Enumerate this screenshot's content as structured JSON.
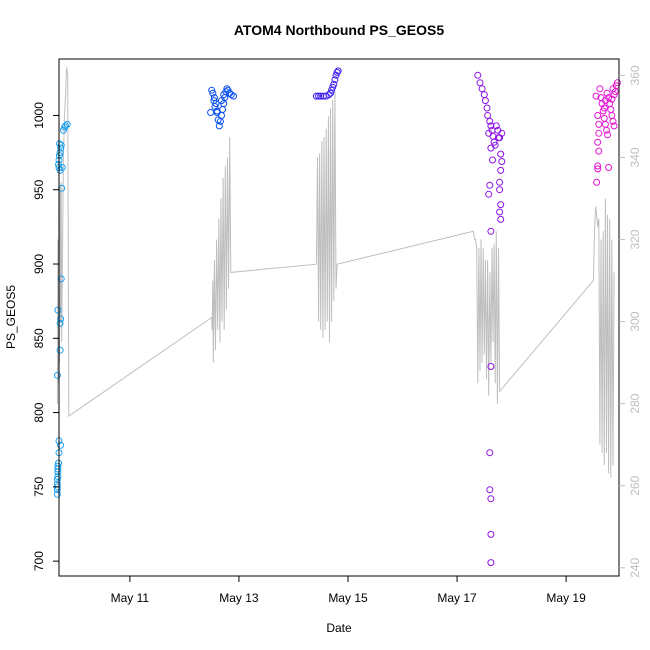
{
  "chart_data": {
    "type": "scatter",
    "title": "ATOM4 Northbound PS_GEOS5",
    "xlabel": "Date",
    "ylabel": "PS_GEOS5",
    "grid": false,
    "xlim": [
      9.7,
      19.97
    ],
    "ylim": [
      690,
      1038
    ],
    "x_ticks": [
      {
        "value": 11,
        "label": "May 11"
      },
      {
        "value": 13,
        "label": "May 13"
      },
      {
        "value": 15,
        "label": "May 15"
      },
      {
        "value": 17,
        "label": "May 17"
      },
      {
        "value": 19,
        "label": "May 19"
      }
    ],
    "y_ticks": [
      700,
      750,
      800,
      850,
      900,
      950,
      1000
    ],
    "y2_ticks": [
      240,
      260,
      280,
      300,
      320,
      340,
      360
    ],
    "y2lim": [
      238,
      364
    ],
    "y2_color": "#bebebe",
    "x_unit_note": "x values are day-of-month in May",
    "series": [
      {
        "color": "#1ea0f0",
        "marker": "open-circle",
        "points": [
          [
            9.67,
            745
          ],
          [
            9.67,
            748
          ],
          [
            9.67,
            750
          ],
          [
            9.67,
            752
          ],
          [
            9.67,
            755
          ],
          [
            9.68,
            757
          ],
          [
            9.68,
            760
          ],
          [
            9.68,
            762
          ],
          [
            9.68,
            764
          ],
          [
            9.69,
            766
          ],
          [
            9.7,
            773
          ],
          [
            9.7,
            781
          ],
          [
            9.73,
            778
          ],
          [
            9.67,
            825
          ],
          [
            9.68,
            869
          ],
          [
            9.72,
            860
          ],
          [
            9.73,
            863
          ],
          [
            9.72,
            842
          ],
          [
            9.74,
            890
          ],
          [
            9.75,
            951
          ],
          [
            9.72,
            963
          ],
          [
            9.7,
            965
          ],
          [
            9.69,
            967
          ],
          [
            9.7,
            970
          ],
          [
            9.71,
            973
          ],
          [
            9.72,
            975
          ],
          [
            9.73,
            978
          ],
          [
            9.74,
            980
          ],
          [
            9.76,
            965
          ],
          [
            9.78,
            990
          ],
          [
            9.8,
            992
          ],
          [
            9.82,
            993
          ],
          [
            9.85,
            994
          ],
          [
            9.71,
            981
          ]
        ]
      },
      {
        "color": "#0a50f0",
        "marker": "open-circle",
        "points": [
          [
            12.5,
            1017
          ],
          [
            12.52,
            1015
          ],
          [
            12.55,
            1012
          ],
          [
            12.58,
            1008
          ],
          [
            12.6,
            1003
          ],
          [
            12.62,
            997
          ],
          [
            12.64,
            993
          ],
          [
            12.6,
            1002
          ],
          [
            12.66,
            996
          ],
          [
            12.68,
            1000
          ],
          [
            12.7,
            1004
          ],
          [
            12.72,
            1008
          ],
          [
            12.74,
            1012
          ],
          [
            12.76,
            1016
          ],
          [
            12.78,
            1018
          ],
          [
            12.8,
            1017
          ],
          [
            12.83,
            1015
          ],
          [
            12.86,
            1014
          ],
          [
            12.9,
            1013
          ],
          [
            12.68,
            1010
          ],
          [
            12.72,
            1014
          ],
          [
            12.54,
            1010
          ],
          [
            12.56,
            1006
          ],
          [
            12.48,
            1002
          ]
        ]
      },
      {
        "color": "#3c1ef0",
        "marker": "open-circle",
        "points": [
          [
            14.42,
            1013
          ],
          [
            14.46,
            1013
          ],
          [
            14.5,
            1013
          ],
          [
            14.55,
            1013
          ],
          [
            14.6,
            1013
          ],
          [
            14.65,
            1014
          ],
          [
            14.68,
            1015
          ],
          [
            14.7,
            1017
          ],
          [
            14.72,
            1019
          ],
          [
            14.74,
            1021
          ],
          [
            14.76,
            1024
          ],
          [
            14.78,
            1027
          ],
          [
            14.8,
            1029
          ],
          [
            14.82,
            1030
          ]
        ]
      },
      {
        "color": "#8c14e6",
        "marker": "open-circle",
        "points": [
          [
            17.38,
            1027
          ],
          [
            17.42,
            1022
          ],
          [
            17.46,
            1018
          ],
          [
            17.5,
            1014
          ],
          [
            17.52,
            1010
          ],
          [
            17.55,
            1005
          ],
          [
            17.56,
            1000
          ],
          [
            17.6,
            996
          ],
          [
            17.62,
            993
          ],
          [
            17.64,
            990
          ],
          [
            17.66,
            986
          ],
          [
            17.68,
            982
          ],
          [
            17.7,
            980
          ],
          [
            17.58,
            988
          ],
          [
            17.62,
            978
          ],
          [
            17.65,
            970
          ],
          [
            17.6,
            953
          ],
          [
            17.58,
            947
          ],
          [
            17.62,
            922
          ],
          [
            17.62,
            831
          ],
          [
            17.6,
            773
          ],
          [
            17.6,
            748
          ],
          [
            17.62,
            742
          ],
          [
            17.62,
            718
          ],
          [
            17.62,
            699
          ],
          [
            17.72,
            993
          ],
          [
            17.75,
            990
          ],
          [
            17.78,
            985
          ],
          [
            17.8,
            974
          ],
          [
            17.82,
            969
          ],
          [
            17.8,
            963
          ],
          [
            17.78,
            955
          ],
          [
            17.78,
            950
          ],
          [
            17.8,
            940
          ],
          [
            17.78,
            935
          ],
          [
            17.8,
            930
          ],
          [
            17.76,
            985
          ],
          [
            17.82,
            988
          ]
        ]
      },
      {
        "color": "#e614d2",
        "marker": "open-circle",
        "points": [
          [
            19.55,
            1013
          ],
          [
            19.58,
            1000
          ],
          [
            19.6,
            994
          ],
          [
            19.6,
            988
          ],
          [
            19.58,
            982
          ],
          [
            19.6,
            976
          ],
          [
            19.58,
            966
          ],
          [
            19.58,
            964
          ],
          [
            19.56,
            955
          ],
          [
            19.62,
            1018
          ],
          [
            19.64,
            1012
          ],
          [
            19.66,
            1008
          ],
          [
            19.68,
            1003
          ],
          [
            19.7,
            998
          ],
          [
            19.72,
            994
          ],
          [
            19.74,
            990
          ],
          [
            19.76,
            987
          ],
          [
            19.7,
            1005
          ],
          [
            19.72,
            1010
          ],
          [
            19.75,
            1015
          ],
          [
            19.78,
            1012
          ],
          [
            19.8,
            1008
          ],
          [
            19.82,
            1004
          ],
          [
            19.84,
            1000
          ],
          [
            19.86,
            996
          ],
          [
            19.88,
            993
          ],
          [
            19.9,
            1016
          ],
          [
            19.92,
            1020
          ],
          [
            19.94,
            1022
          ],
          [
            19.86,
            1018
          ],
          [
            19.88,
            1014
          ],
          [
            19.78,
            965
          ],
          [
            19.84,
            1011
          ]
        ]
      },
      {
        "color": "#bebebe",
        "axis": "right",
        "type": "line",
        "points": [
          [
            9.67,
            280
          ],
          [
            9.68,
            320
          ],
          [
            9.69,
            285
          ],
          [
            9.7,
            330
          ],
          [
            9.71,
            290
          ],
          [
            9.72,
            333
          ],
          [
            9.73,
            300
          ],
          [
            9.74,
            334
          ],
          [
            9.75,
            295
          ],
          [
            9.78,
            340
          ],
          [
            9.8,
            350
          ],
          [
            9.82,
            355
          ],
          [
            9.84,
            362
          ],
          [
            9.86,
            360
          ],
          [
            9.88,
            277
          ],
          [
            12.5,
            301
          ],
          [
            12.51,
            298
          ],
          [
            12.52,
            310
          ],
          [
            12.53,
            290
          ],
          [
            12.55,
            315
          ],
          [
            12.57,
            293
          ],
          [
            12.59,
            320
          ],
          [
            12.61,
            298
          ],
          [
            12.63,
            325
          ],
          [
            12.65,
            295
          ],
          [
            12.67,
            330
          ],
          [
            12.69,
            300
          ],
          [
            12.71,
            335
          ],
          [
            12.73,
            298
          ],
          [
            12.75,
            338
          ],
          [
            12.77,
            303
          ],
          [
            12.79,
            340
          ],
          [
            12.81,
            308
          ],
          [
            12.83,
            345
          ],
          [
            12.85,
            312
          ],
          [
            14.42,
            314
          ],
          [
            14.44,
            340
          ],
          [
            14.46,
            300
          ],
          [
            14.48,
            341
          ],
          [
            14.5,
            298
          ],
          [
            14.52,
            344
          ],
          [
            14.54,
            296
          ],
          [
            14.56,
            345
          ],
          [
            14.58,
            298
          ],
          [
            14.6,
            347
          ],
          [
            14.62,
            300
          ],
          [
            14.64,
            350
          ],
          [
            14.66,
            295
          ],
          [
            14.68,
            352
          ],
          [
            14.7,
            300
          ],
          [
            14.72,
            354
          ],
          [
            14.74,
            305
          ],
          [
            14.76,
            356
          ],
          [
            14.78,
            308
          ],
          [
            14.8,
            314
          ],
          [
            17.3,
            322
          ],
          [
            17.32,
            320
          ],
          [
            17.34,
            320
          ],
          [
            17.36,
            318
          ],
          [
            17.38,
            285
          ],
          [
            17.4,
            318
          ],
          [
            17.42,
            288
          ],
          [
            17.44,
            320
          ],
          [
            17.46,
            290
          ],
          [
            17.48,
            318
          ],
          [
            17.5,
            292
          ],
          [
            17.52,
            315
          ],
          [
            17.54,
            286
          ],
          [
            17.56,
            315
          ],
          [
            17.58,
            282
          ],
          [
            17.6,
            312
          ],
          [
            17.62,
            290
          ],
          [
            17.64,
            318
          ],
          [
            17.66,
            295
          ],
          [
            17.68,
            319
          ],
          [
            17.7,
            285
          ],
          [
            17.72,
            322
          ],
          [
            17.74,
            280
          ],
          [
            17.76,
            318
          ],
          [
            17.78,
            283
          ],
          [
            19.5,
            310
          ],
          [
            19.52,
            322
          ],
          [
            19.54,
            328
          ],
          [
            19.56,
            326
          ],
          [
            19.58,
            323
          ],
          [
            19.6,
            325
          ],
          [
            19.62,
            270
          ],
          [
            19.64,
            320
          ],
          [
            19.66,
            268
          ],
          [
            19.68,
            322
          ],
          [
            19.7,
            265
          ],
          [
            19.72,
            330
          ],
          [
            19.74,
            268
          ],
          [
            19.76,
            326
          ],
          [
            19.78,
            263
          ],
          [
            19.8,
            325
          ],
          [
            19.82,
            262
          ],
          [
            19.84,
            320
          ],
          [
            19.86,
            265
          ],
          [
            19.88,
            312
          ]
        ]
      }
    ]
  }
}
